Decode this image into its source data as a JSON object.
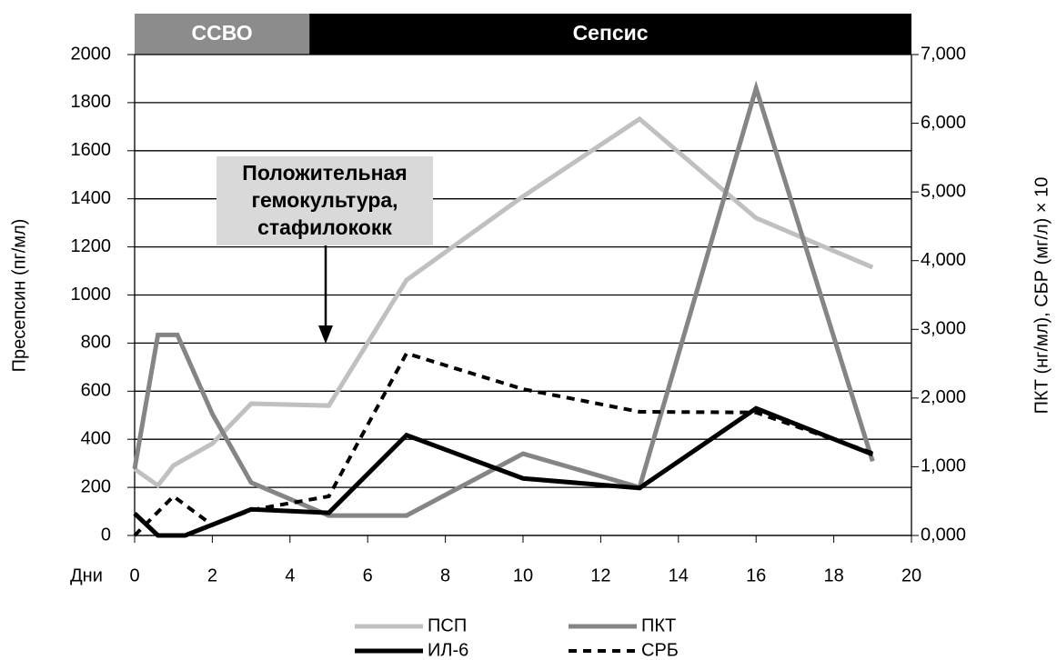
{
  "chart_data": {
    "type": "line",
    "phases": [
      {
        "label": "ССВО",
        "start": 0,
        "end": 4.5,
        "color": "#8c8c8c"
      },
      {
        "label": "Сепсис",
        "start": 4.5,
        "end": 20,
        "color": "#000000"
      }
    ],
    "annotation": [
      "Положительная",
      "гемокультура,",
      "стафилококк"
    ],
    "x_label": "Дни",
    "y_label": "Пресепсин (пг/мл)",
    "y2_label": "ПКТ (нг/мл), СБР (мг/л) × 10",
    "xlim": [
      0,
      20
    ],
    "xticks": [
      0,
      2,
      4,
      6,
      8,
      10,
      12,
      14,
      16,
      18,
      20
    ],
    "ylim": [
      0,
      2000
    ],
    "yticks": [
      0,
      200,
      400,
      600,
      800,
      1000,
      1200,
      1400,
      1600,
      1800,
      2000
    ],
    "y2lim": [
      0,
      7
    ],
    "y2ticks": [
      {
        "value": 0,
        "label": "0,000"
      },
      {
        "value": 1,
        "label": "1,000"
      },
      {
        "value": 2,
        "label": "2,000"
      },
      {
        "value": 3,
        "label": "3,000"
      },
      {
        "value": 4,
        "label": "4,000"
      },
      {
        "value": 5,
        "label": "5,000"
      },
      {
        "value": 6,
        "label": "6,000"
      },
      {
        "value": 7,
        "label": "7,000"
      }
    ],
    "grid": true,
    "series": [
      {
        "name": "ПСП",
        "color": "#c0c0c0",
        "style": "solid",
        "axis": "y",
        "x": [
          0,
          0.6,
          1,
          2,
          3,
          5,
          7,
          10,
          13,
          16,
          19
        ],
        "values": [
          276,
          208,
          291,
          382,
          548,
          540,
          1062,
          1410,
          1732,
          1320,
          1115
        ]
      },
      {
        "name": "ПКТ",
        "color": "#858585",
        "style": "solid",
        "axis": "y2",
        "x": [
          0,
          0.6,
          1.1,
          2,
          3,
          5,
          7,
          10,
          13,
          16,
          19
        ],
        "values": [
          0.97,
          2.92,
          2.92,
          1.77,
          0.77,
          0.29,
          0.29,
          1.19,
          0.7,
          6.51,
          1.08
        ]
      },
      {
        "name": "ИЛ-6",
        "color": "#000000",
        "style": "solid",
        "axis": "y2",
        "x": [
          0,
          0.6,
          1.3,
          3,
          5,
          7,
          10,
          13,
          16,
          19
        ],
        "values": [
          0.32,
          0,
          0,
          0.38,
          0.33,
          1.46,
          0.83,
          0.69,
          1.85,
          1.18
        ]
      },
      {
        "name": "СРБ",
        "color": "#000000",
        "style": "dashed",
        "axis": "y2",
        "x": [
          0,
          1,
          2,
          3,
          5,
          7,
          10,
          13,
          16,
          19
        ],
        "values": [
          0,
          0.57,
          0.15,
          0.37,
          0.57,
          2.65,
          2.13,
          1.8,
          1.79,
          1.2
        ]
      }
    ]
  }
}
